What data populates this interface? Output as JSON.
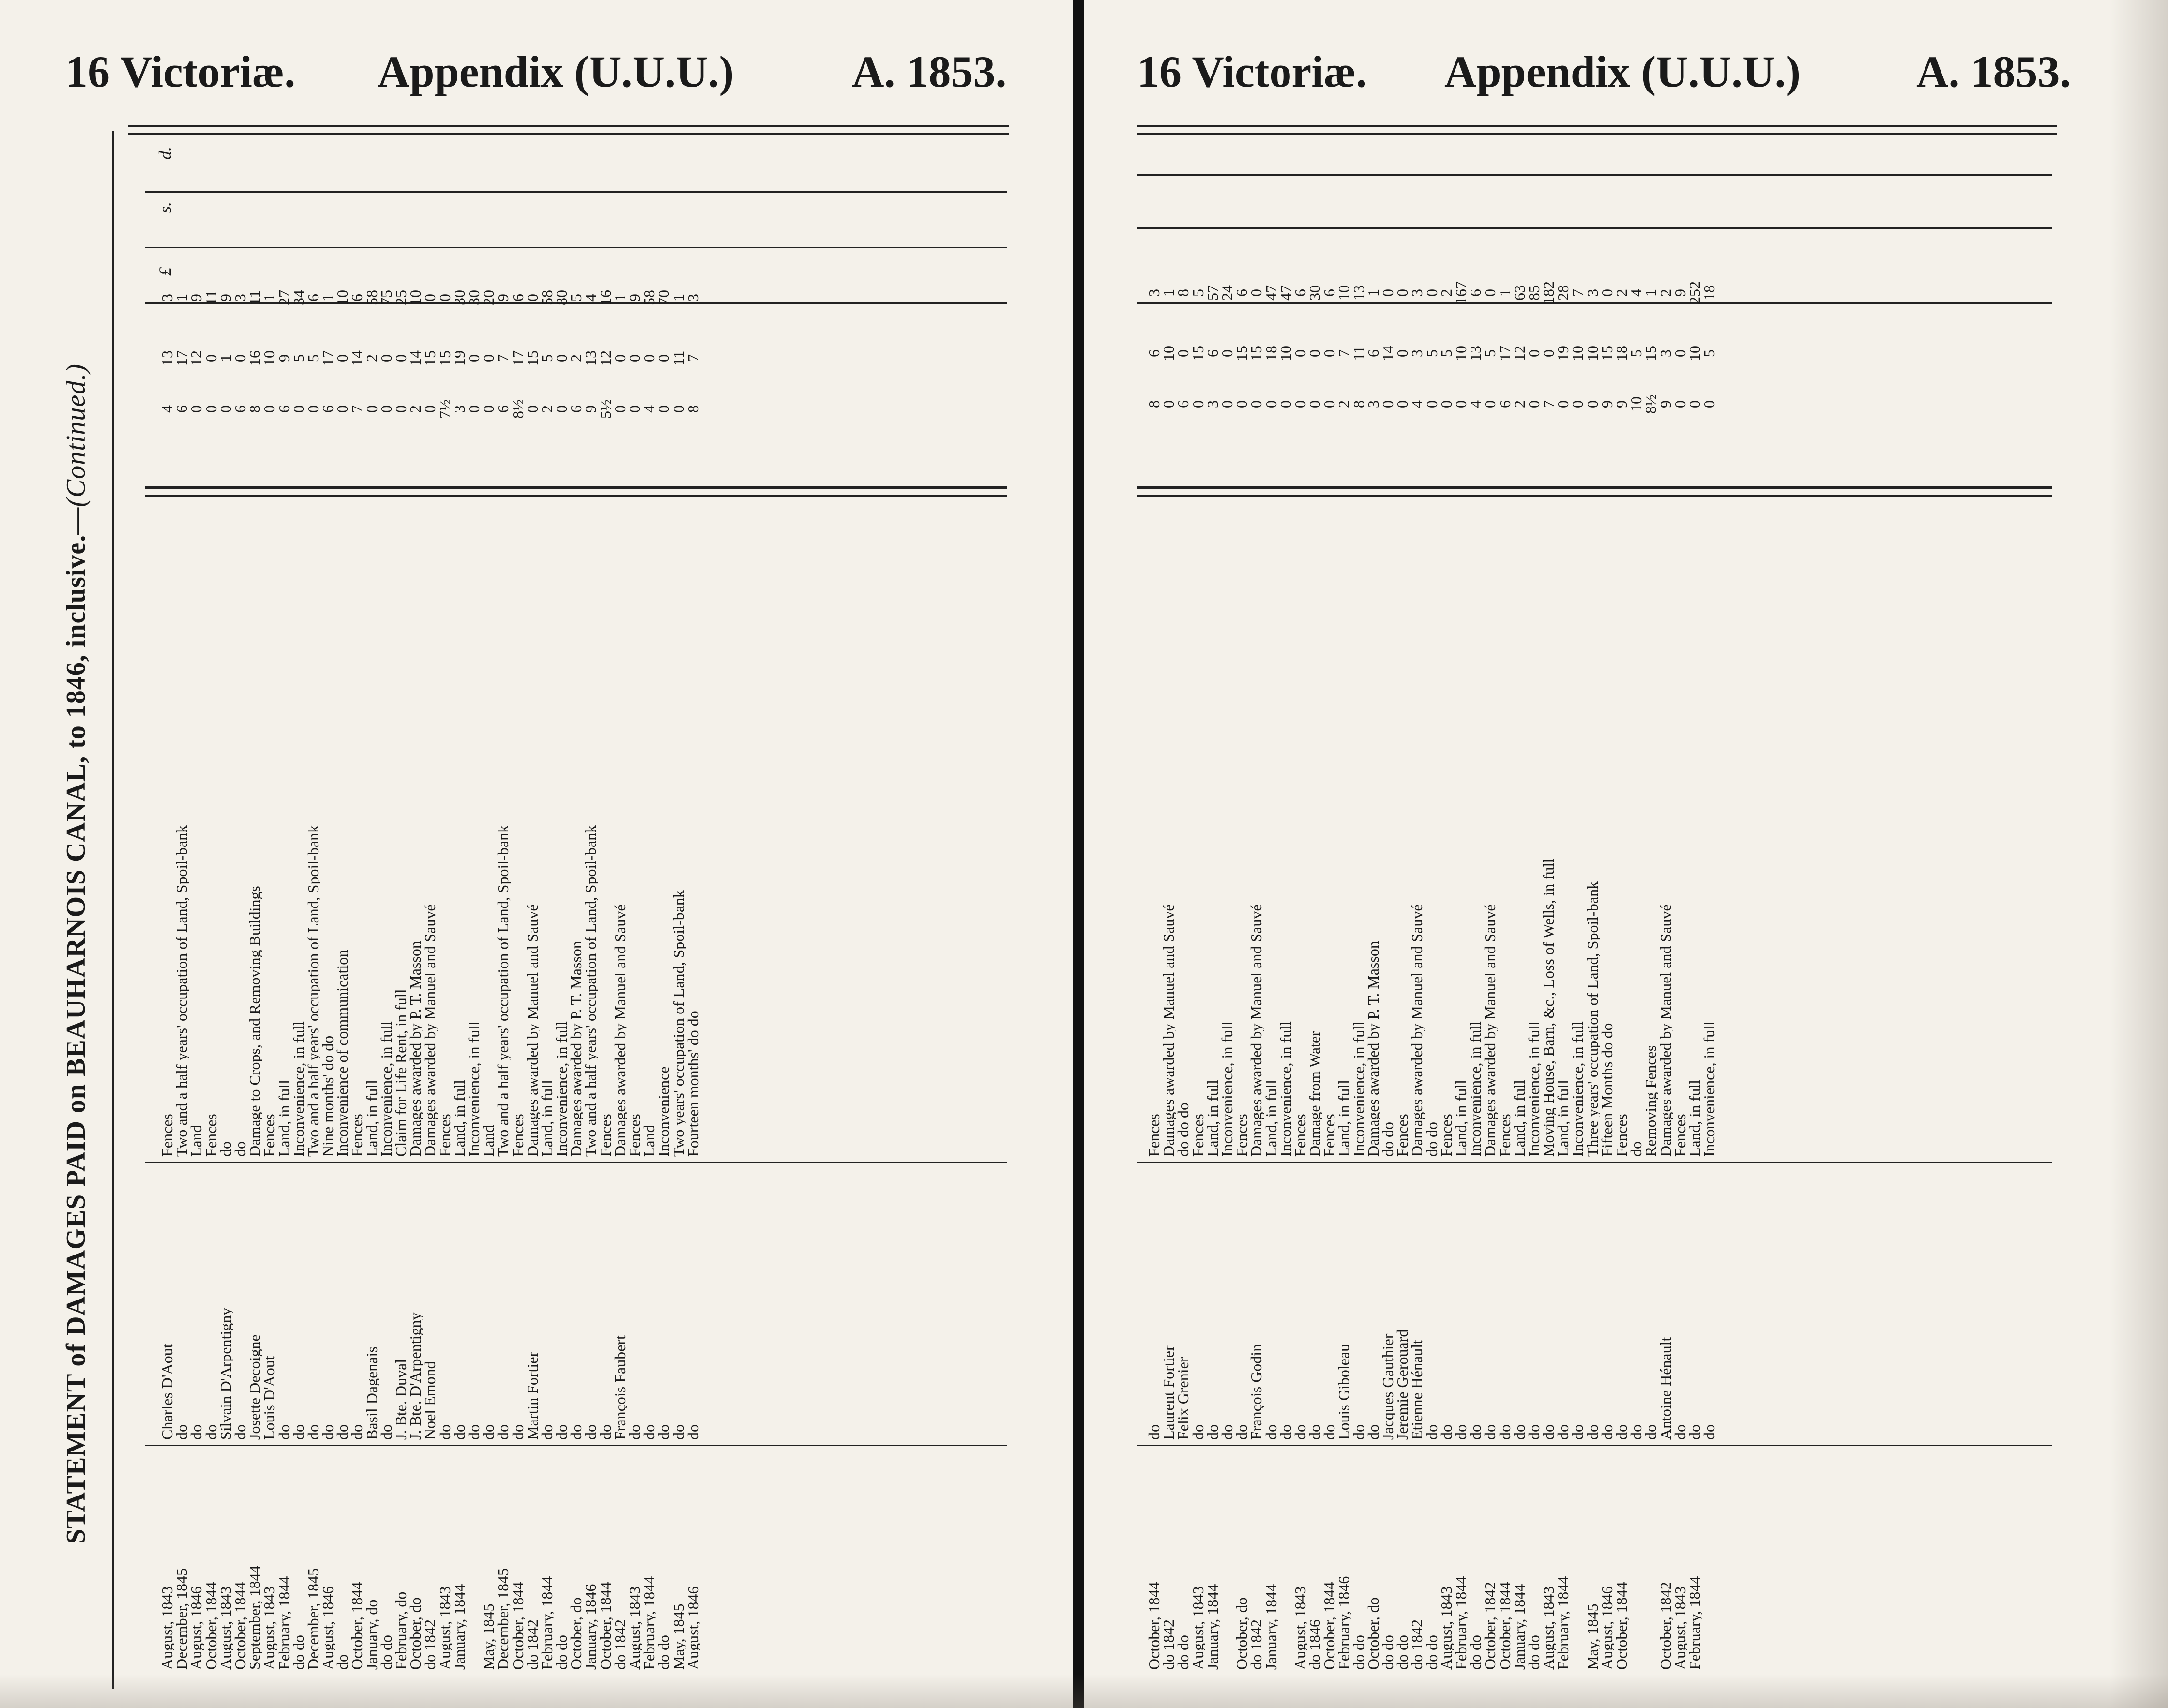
{
  "header": {
    "reign": "16 Victoriæ.",
    "appendix": "Appendix (U.U.U.)",
    "year": "A. 1853."
  },
  "title": {
    "main": "STATEMENT of DAMAGES PAID on BEAUHARNOIS CANAL, to 1846, inclusive.—",
    "continued": "(Continued.)"
  },
  "currency": {
    "pounds": "£",
    "shillings": "s.",
    "pence": "d."
  },
  "left_rows": [
    {
      "date": "August, 1843",
      "name": "Charles D'Aout",
      "reason": "Fences",
      "l": "3",
      "s": "13",
      "d": "4"
    },
    {
      "date": "December, 1845",
      "name": "do",
      "reason": "Two and a half years' occupation of Land, Spoil-bank",
      "l": "1",
      "s": "17",
      "d": "6"
    },
    {
      "date": "August, 1846",
      "name": "do",
      "reason": "Land",
      "l": "9",
      "s": "12",
      "d": "0"
    },
    {
      "date": "October, 1844",
      "name": "do",
      "reason": "Fences",
      "l": "11",
      "s": "0",
      "d": "0"
    },
    {
      "date": "August, 1843",
      "name": "Silvain D'Arpentigny",
      "reason": "do",
      "l": "9",
      "s": "1",
      "d": "0"
    },
    {
      "date": "October, 1844",
      "name": "do",
      "reason": "do",
      "l": "3",
      "s": "0",
      "d": "6"
    },
    {
      "date": "September, 1844",
      "name": "Josette Decoigne",
      "reason": "Damage to Crops, and Removing Buildings",
      "l": "11",
      "s": "16",
      "d": "8"
    },
    {
      "date": "August, 1843",
      "name": "Louis D'Aout",
      "reason": "Fences",
      "l": "1",
      "s": "10",
      "d": "0"
    },
    {
      "date": "February, 1844",
      "name": "do",
      "reason": "Land, in full",
      "l": "27",
      "s": "9",
      "d": "6"
    },
    {
      "date": "do do",
      "name": "do",
      "reason": "Inconvenience, in full",
      "l": "34",
      "s": "5",
      "d": "0"
    },
    {
      "date": "December, 1845",
      "name": "do",
      "reason": "Two and a half years' occupation of Land, Spoil-bank",
      "l": "6",
      "s": "5",
      "d": "0"
    },
    {
      "date": "August, 1846",
      "name": "do",
      "reason": "Nine months' do do",
      "l": "1",
      "s": "17",
      "d": "6"
    },
    {
      "date": "do",
      "name": "do",
      "reason": "Inconvenience of communication",
      "l": "10",
      "s": "0",
      "d": "0"
    },
    {
      "date": "October, 1844",
      "name": "do",
      "reason": "Fences",
      "l": "6",
      "s": "14",
      "d": "7"
    },
    {
      "date": "January, do",
      "name": "Basil Dagenais",
      "reason": "Land, in full",
      "l": "58",
      "s": "2",
      "d": "0"
    },
    {
      "date": "do do",
      "name": "do",
      "reason": "Inconvenience, in full",
      "l": "75",
      "s": "0",
      "d": "0"
    },
    {
      "date": "February, do",
      "name": "J. Bte. Duval",
      "reason": "Claim for Life Rent, in full",
      "l": "25",
      "s": "0",
      "d": "0"
    },
    {
      "date": "October, do",
      "name": "J. Bte. D'Arpentigny",
      "reason": "Damages awarded by P. T. Masson",
      "l": "10",
      "s": "14",
      "d": "2"
    },
    {
      "date": "do 1842",
      "name": "Noel Emond",
      "reason": "Damages awarded by Manuel and Sauvé",
      "l": "0",
      "s": "15",
      "d": "0"
    },
    {
      "date": "August, 1843",
      "name": "do",
      "reason": "Fences",
      "l": "0",
      "s": "15",
      "d": "7½"
    },
    {
      "date": "January, 1844",
      "name": "do",
      "reason": "Land, in full",
      "l": "30",
      "s": "19",
      "d": "3"
    },
    {
      "date": "",
      "name": "do",
      "reason": "Inconvenience, in full",
      "l": "30",
      "s": "0",
      "d": "0"
    },
    {
      "date": "May, 1845",
      "name": "do",
      "reason": "Land",
      "l": "20",
      "s": "0",
      "d": "0"
    },
    {
      "date": "December, 1845",
      "name": "do",
      "reason": "Two and a half years' occupation of Land, Spoil-bank",
      "l": "9",
      "s": "7",
      "d": "6"
    },
    {
      "date": "October, 1844",
      "name": "do",
      "reason": "Fences",
      "l": "6",
      "s": "17",
      "d": "8½"
    },
    {
      "date": "do 1842",
      "name": "Martin Fortier",
      "reason": "Damages awarded by Manuel and Sauvé",
      "l": "0",
      "s": "15",
      "d": "0"
    },
    {
      "date": "February, 1844",
      "name": "do",
      "reason": "Land, in full",
      "l": "58",
      "s": "5",
      "d": "2"
    },
    {
      "date": "do do",
      "name": "do",
      "reason": "Inconvenience, in full",
      "l": "80",
      "s": "0",
      "d": "0"
    },
    {
      "date": "October, do",
      "name": "do",
      "reason": "Damages awarded by P. T. Masson",
      "l": "5",
      "s": "2",
      "d": "6"
    },
    {
      "date": "January, 1846",
      "name": "do",
      "reason": "Two and a half years' occupation of Land, Spoil-bank",
      "l": "4",
      "s": "13",
      "d": "9"
    },
    {
      "date": "October, 1844",
      "name": "do",
      "reason": "Fences",
      "l": "16",
      "s": "12",
      "d": "5½"
    },
    {
      "date": "do 1842",
      "name": "François Faubert",
      "reason": "Damages awarded by Manuel and Sauvé",
      "l": "1",
      "s": "0",
      "d": "0"
    },
    {
      "date": "August, 1843",
      "name": "do",
      "reason": "Fences",
      "l": "9",
      "s": "0",
      "d": "0"
    },
    {
      "date": "February, 1844",
      "name": "do",
      "reason": "Land",
      "l": "58",
      "s": "0",
      "d": "4"
    },
    {
      "date": "do do",
      "name": "do",
      "reason": "Inconvenience",
      "l": "70",
      "s": "0",
      "d": "0"
    },
    {
      "date": "May, 1845",
      "name": "do",
      "reason": "Two years' occupation of Land, Spoil-bank",
      "l": "1",
      "s": "11",
      "d": "0"
    },
    {
      "date": "August, 1846",
      "name": "do",
      "reason": "Fourteen months' do do",
      "l": "3",
      "s": "7",
      "d": "8"
    }
  ],
  "right_rows": [
    {
      "date": "October, 1844",
      "name": "do",
      "reason": "Fences",
      "l": "3",
      "s": "6",
      "d": "8"
    },
    {
      "date": "do 1842",
      "name": "Laurent Fortier",
      "reason": "Damages awarded by Manuel and Sauvé",
      "l": "1",
      "s": "10",
      "d": "0"
    },
    {
      "date": "do do",
      "name": "Felix Grenier",
      "reason": "do do do",
      "l": "8",
      "s": "0",
      "d": "6"
    },
    {
      "date": "August, 1843",
      "name": "do",
      "reason": "Fences",
      "l": "5",
      "s": "15",
      "d": "0"
    },
    {
      "date": "January, 1844",
      "name": "do",
      "reason": "Land, in full",
      "l": "57",
      "s": "6",
      "d": "3"
    },
    {
      "date": "",
      "name": "do",
      "reason": "Inconvenience, in full",
      "l": "24",
      "s": "0",
      "d": "0"
    },
    {
      "date": "October, do",
      "name": "do",
      "reason": "Fences",
      "l": "6",
      "s": "15",
      "d": "0"
    },
    {
      "date": "do 1842",
      "name": "François Godin",
      "reason": "Damages awarded by Manuel and Sauvé",
      "l": "0",
      "s": "15",
      "d": "0"
    },
    {
      "date": "January, 1844",
      "name": "do",
      "reason": "Land, in full",
      "l": "47",
      "s": "18",
      "d": "0"
    },
    {
      "date": "",
      "name": "do",
      "reason": "Inconvenience, in full",
      "l": "47",
      "s": "10",
      "d": "0"
    },
    {
      "date": "August, 1843",
      "name": "do",
      "reason": "Fences",
      "l": "6",
      "s": "0",
      "d": "0"
    },
    {
      "date": "do 1846",
      "name": "do",
      "reason": "Damage from Water",
      "l": "30",
      "s": "0",
      "d": "0"
    },
    {
      "date": "October, 1844",
      "name": "do",
      "reason": "Fences",
      "l": "6",
      "s": "0",
      "d": "0"
    },
    {
      "date": "February, 1846",
      "name": "Louis Giboleau",
      "reason": "Land, in full",
      "l": "10",
      "s": "7",
      "d": "2"
    },
    {
      "date": "do do",
      "name": "do",
      "reason": "Inconvenience, in full",
      "l": "13",
      "s": "11",
      "d": "8"
    },
    {
      "date": "October, do",
      "name": "do",
      "reason": "Damages awarded by P. T. Masson",
      "l": "1",
      "s": "6",
      "d": "3"
    },
    {
      "date": "do do",
      "name": "Jacques Gauthier",
      "reason": "do do",
      "l": "0",
      "s": "14",
      "d": "0"
    },
    {
      "date": "do do",
      "name": "Jeremie Gerouard",
      "reason": "Fences",
      "l": "0",
      "s": "0",
      "d": "0"
    },
    {
      "date": "do 1842",
      "name": "Etienne Hénault",
      "reason": "Damages awarded by Manuel and Sauvé",
      "l": "3",
      "s": "3",
      "d": "4"
    },
    {
      "date": "do do",
      "name": "do",
      "reason": "do do",
      "l": "0",
      "s": "5",
      "d": "0"
    },
    {
      "date": "August, 1843",
      "name": "do",
      "reason": "Fences",
      "l": "2",
      "s": "5",
      "d": "0"
    },
    {
      "date": "February, 1844",
      "name": "do",
      "reason": "Land, in full",
      "l": "167",
      "s": "10",
      "d": "0"
    },
    {
      "date": "do do",
      "name": "do",
      "reason": "Inconvenience, in full",
      "l": "6",
      "s": "13",
      "d": "4"
    },
    {
      "date": "October, 1842",
      "name": "do",
      "reason": "Damages awarded by Manuel and Sauvé",
      "l": "0",
      "s": "5",
      "d": "0"
    },
    {
      "date": "October, 1844",
      "name": "do",
      "reason": "Fences",
      "l": "1",
      "s": "17",
      "d": "6"
    },
    {
      "date": "January, 1844",
      "name": "do",
      "reason": "Land, in full",
      "l": "63",
      "s": "12",
      "d": "2"
    },
    {
      "date": "do do",
      "name": "do",
      "reason": "Inconvenience, in full",
      "l": "85",
      "s": "0",
      "d": "0"
    },
    {
      "date": "August, 1843",
      "name": "do",
      "reason": "Moving House, Barn, &c., Loss of Wells, in full",
      "l": "182",
      "s": "0",
      "d": "7"
    },
    {
      "date": "February, 1844",
      "name": "do",
      "reason": "Land, in full",
      "l": "28",
      "s": "19",
      "d": "0"
    },
    {
      "date": "",
      "name": "do",
      "reason": "Inconvenience, in full",
      "l": "7",
      "s": "10",
      "d": "0"
    },
    {
      "date": "May, 1845",
      "name": "do",
      "reason": "Three years' occupation of Land, Spoil-bank",
      "l": "3",
      "s": "10",
      "d": "0"
    },
    {
      "date": "August, 1846",
      "name": "do",
      "reason": "Fifteen Months do do",
      "l": "0",
      "s": "15",
      "d": "9"
    },
    {
      "date": "October, 1844",
      "name": "do",
      "reason": "Fences",
      "l": "2",
      "s": "18",
      "d": "9"
    },
    {
      "date": "",
      "name": "do",
      "reason": "do",
      "l": "4",
      "s": "5",
      "d": "10"
    },
    {
      "date": "",
      "name": "do",
      "reason": "Removing Fences",
      "l": "1",
      "s": "15",
      "d": "8½"
    },
    {
      "date": "October, 1842",
      "name": "Antoine Hénault",
      "reason": "Damages awarded by Manuel and Sauvé",
      "l": "2",
      "s": "3",
      "d": "9"
    },
    {
      "date": "August, 1843",
      "name": "do",
      "reason": "Fences",
      "l": "9",
      "s": "0",
      "d": "0"
    },
    {
      "date": "February, 1844",
      "name": "do",
      "reason": "Land, in full",
      "l": "252",
      "s": "10",
      "d": "0"
    },
    {
      "date": "",
      "name": "do",
      "reason": "Inconvenience, in full",
      "l": "18",
      "s": "5",
      "d": "0"
    }
  ]
}
